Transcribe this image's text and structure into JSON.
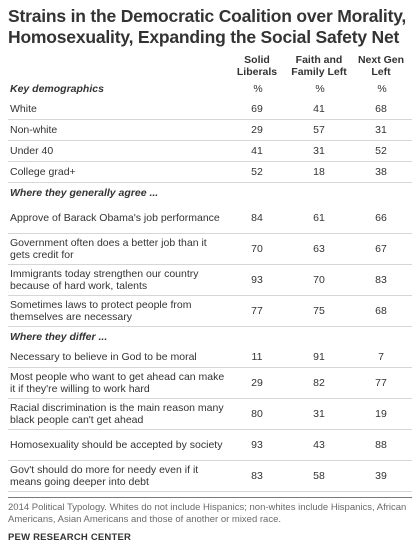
{
  "title": "Strains in the Democratic Coalition over Morality, Homosexuality, Expanding the Social Safety Net",
  "chart_data": {
    "type": "table",
    "columns": [
      "Solid Liberals",
      "Faith and Family Left",
      "Next Gen Left"
    ],
    "unit_label": "%",
    "sections": [
      {
        "heading": "Key demographics",
        "rows": [
          {
            "label": "White",
            "values": [
              "69",
              "41",
              "68"
            ]
          },
          {
            "label": "Non-white",
            "values": [
              "29",
              "57",
              "31"
            ]
          },
          {
            "label": "Under 40",
            "values": [
              "41",
              "31",
              "52"
            ]
          },
          {
            "label": "College grad+",
            "values": [
              "52",
              "18",
              "38"
            ]
          }
        ]
      },
      {
        "heading": "Where they generally agree ...",
        "rows": [
          {
            "label": "Approve of Barack Obama's job performance",
            "values": [
              "84",
              "61",
              "66"
            ]
          },
          {
            "label": "Government often does a better job than it gets credit for",
            "values": [
              "70",
              "63",
              "67"
            ]
          },
          {
            "label": "Immigrants today strengthen our country because of hard work, talents",
            "values": [
              "93",
              "70",
              "83"
            ]
          },
          {
            "label": "Sometimes laws to protect people from themselves are necessary",
            "values": [
              "77",
              "75",
              "68"
            ]
          }
        ]
      },
      {
        "heading": "Where they differ ...",
        "rows": [
          {
            "label": "Necessary to believe in God to be moral",
            "values": [
              "11",
              "91",
              "7"
            ]
          },
          {
            "label": "Most people who want to get ahead can make it if they're willing to work hard",
            "values": [
              "29",
              "82",
              "77"
            ]
          },
          {
            "label": "Racial discrimination is the main reason many black people can't get ahead",
            "values": [
              "80",
              "31",
              "19"
            ]
          },
          {
            "label": "Homosexuality should be accepted by society",
            "values": [
              "93",
              "43",
              "88"
            ]
          },
          {
            "label": "Gov't should do more for needy even if it means going deeper into debt",
            "values": [
              "83",
              "58",
              "39"
            ]
          }
        ]
      }
    ]
  },
  "note": "2014 Political Typology. Whites do not include Hispanics; non-whites include Hispanics, African Americans, Asian Americans and those of another or mixed race.",
  "source": "PEW RESEARCH CENTER"
}
